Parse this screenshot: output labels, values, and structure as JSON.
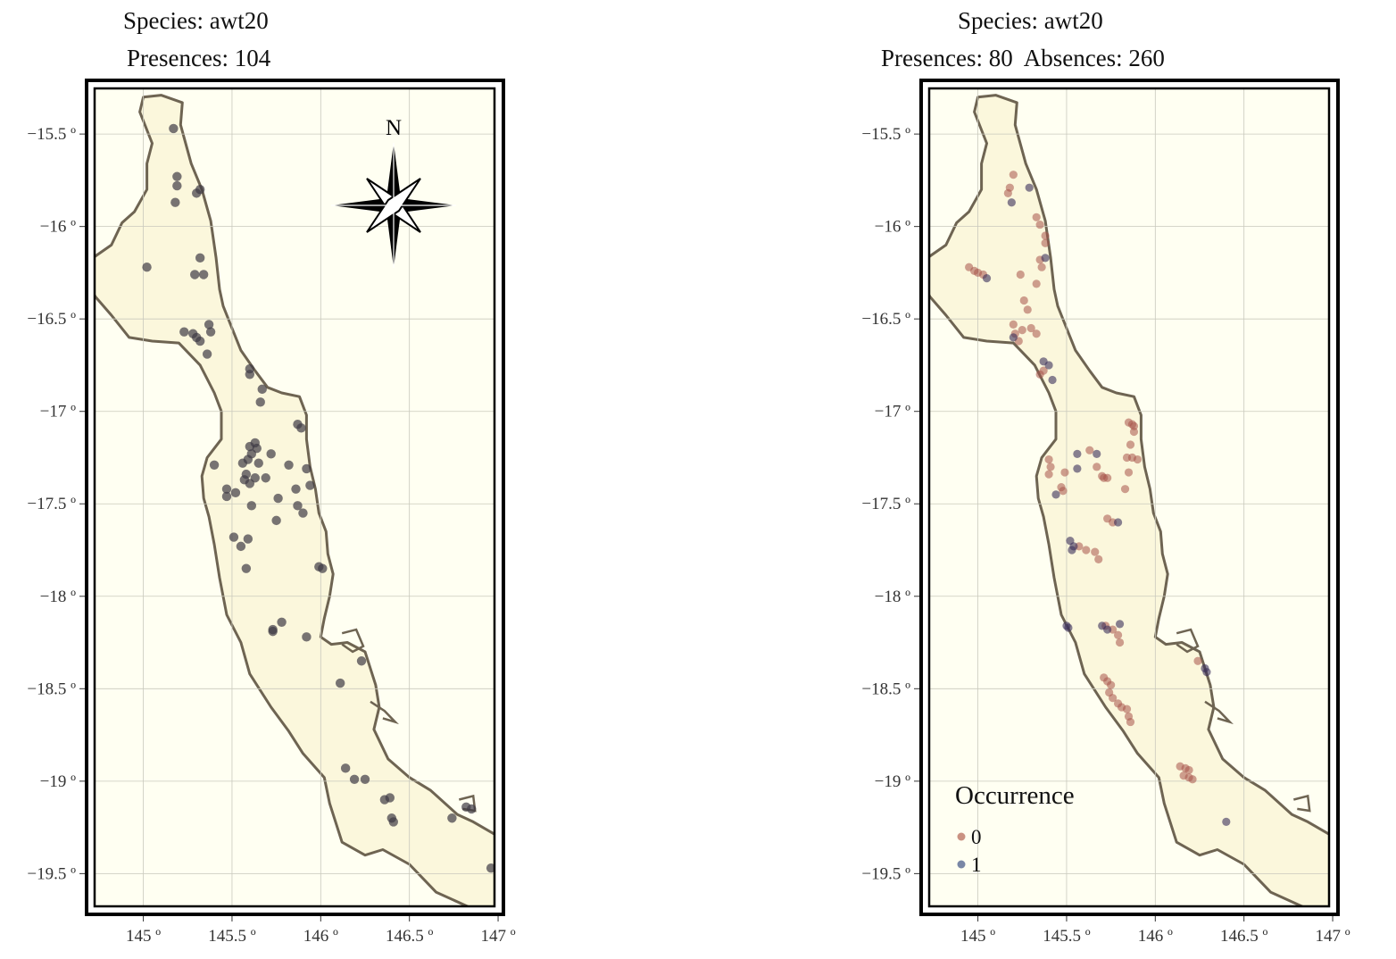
{
  "panels": [
    {
      "title_line1": "Species: awt20",
      "title_line2": "Presences: 104",
      "has_north_arrow": true,
      "north_label": "N",
      "point_style": "presence"
    },
    {
      "title_line1": "Species: awt20",
      "title_line2": "Presences: 80  Absences: 260",
      "has_north_arrow": false,
      "point_style": "occurrence",
      "legend": {
        "title": "Occurrence",
        "items": [
          {
            "label": "0",
            "color": "#b86d5c"
          },
          {
            "label": "1",
            "color": "#4c5f8c"
          }
        ]
      }
    }
  ],
  "axis": {
    "x_ticks": [
      "145 º",
      "145.5 º",
      "146 º",
      "146.5 º",
      "147 º"
    ],
    "y_ticks": [
      "−15.5 º",
      "−16 º",
      "−16.5 º",
      "−17 º",
      "−17.5 º",
      "−18 º",
      "−18.5 º",
      "−19 º",
      "−19.5 º"
    ],
    "x_values": [
      145,
      145.5,
      146,
      146.5,
      147
    ],
    "y_values": [
      -15.5,
      -16,
      -16.5,
      -17,
      -17.5,
      -18,
      -18.5,
      -19,
      -19.5
    ],
    "xlim": [
      144.67,
      147.04
    ],
    "ylim": [
      -19.73,
      -15.2
    ]
  },
  "colors": {
    "land": "#fbf7dc",
    "panel_bg": "#fffff2",
    "coast": "#6e6452",
    "grid": "#c9c9bd",
    "presence_point": "#3e3a45",
    "absence_point": "#a8544a",
    "presence_point_dark": "#3a2e5a"
  },
  "coastline": [
    [
      145.0,
      -15.3
    ],
    [
      145.1,
      -15.29
    ],
    [
      145.22,
      -15.33
    ],
    [
      145.21,
      -15.45
    ],
    [
      145.27,
      -15.66
    ],
    [
      145.33,
      -15.8
    ],
    [
      145.38,
      -15.97
    ],
    [
      145.41,
      -16.17
    ],
    [
      145.43,
      -16.34
    ],
    [
      145.45,
      -16.43
    ],
    [
      145.5,
      -16.55
    ],
    [
      145.55,
      -16.67
    ],
    [
      145.63,
      -16.78
    ],
    [
      145.7,
      -16.87
    ],
    [
      145.78,
      -16.9
    ],
    [
      145.88,
      -16.92
    ],
    [
      145.92,
      -17.02
    ],
    [
      145.92,
      -17.15
    ],
    [
      145.94,
      -17.3
    ],
    [
      145.97,
      -17.42
    ],
    [
      145.99,
      -17.55
    ],
    [
      146.03,
      -17.65
    ],
    [
      146.04,
      -17.77
    ],
    [
      146.07,
      -17.88
    ],
    [
      146.05,
      -18.0
    ],
    [
      146.02,
      -18.12
    ],
    [
      146.0,
      -18.22
    ],
    [
      146.06,
      -18.26
    ],
    [
      146.15,
      -18.25
    ],
    [
      146.25,
      -18.3
    ],
    [
      146.31,
      -18.48
    ],
    [
      146.33,
      -18.6
    ],
    [
      146.3,
      -18.72
    ],
    [
      146.38,
      -18.88
    ],
    [
      146.5,
      -18.98
    ],
    [
      146.62,
      -19.05
    ],
    [
      146.77,
      -19.18
    ],
    [
      146.86,
      -19.22
    ],
    [
      147.04,
      -19.32
    ],
    [
      147.04,
      -19.73
    ],
    [
      146.88,
      -19.7
    ],
    [
      146.65,
      -19.6
    ],
    [
      146.5,
      -19.45
    ],
    [
      146.35,
      -19.37
    ],
    [
      146.25,
      -19.4
    ],
    [
      146.12,
      -19.33
    ],
    [
      146.05,
      -19.12
    ],
    [
      146.02,
      -18.98
    ],
    [
      145.9,
      -18.85
    ],
    [
      145.82,
      -18.73
    ],
    [
      145.72,
      -18.6
    ],
    [
      145.6,
      -18.42
    ],
    [
      145.55,
      -18.25
    ],
    [
      145.47,
      -18.1
    ],
    [
      145.43,
      -17.9
    ],
    [
      145.4,
      -17.72
    ],
    [
      145.37,
      -17.57
    ],
    [
      145.34,
      -17.47
    ],
    [
      145.33,
      -17.35
    ],
    [
      145.36,
      -17.25
    ],
    [
      145.44,
      -17.15
    ],
    [
      145.44,
      -17.0
    ],
    [
      145.4,
      -16.9
    ],
    [
      145.32,
      -16.75
    ],
    [
      145.2,
      -16.63
    ],
    [
      145.05,
      -16.62
    ],
    [
      144.92,
      -16.6
    ],
    [
      144.82,
      -16.48
    ],
    [
      144.73,
      -16.38
    ],
    [
      144.67,
      -16.28
    ],
    [
      144.7,
      -16.18
    ],
    [
      144.82,
      -16.1
    ],
    [
      144.88,
      -15.98
    ],
    [
      144.95,
      -15.92
    ],
    [
      145.02,
      -15.8
    ],
    [
      145.02,
      -15.66
    ],
    [
      145.05,
      -15.55
    ],
    [
      144.98,
      -15.38
    ]
  ],
  "islands": [
    [
      [
        146.12,
        -18.2
      ],
      [
        146.2,
        -18.18
      ],
      [
        146.24,
        -18.27
      ],
      [
        146.18,
        -18.3
      ],
      [
        146.12,
        -18.26
      ]
    ],
    [
      [
        146.28,
        -18.57
      ],
      [
        146.36,
        -18.62
      ],
      [
        146.42,
        -18.68
      ],
      [
        146.35,
        -18.66
      ]
    ],
    [
      [
        146.78,
        -19.1
      ],
      [
        146.86,
        -19.08
      ],
      [
        146.87,
        -19.16
      ],
      [
        146.8,
        -19.15
      ]
    ]
  ],
  "map_points_left": [
    [
      145.17,
      -15.47
    ],
    [
      145.19,
      -15.73
    ],
    [
      145.19,
      -15.78
    ],
    [
      145.18,
      -15.87
    ],
    [
      145.3,
      -15.82
    ],
    [
      145.32,
      -15.8
    ],
    [
      145.32,
      -16.17
    ],
    [
      145.29,
      -16.26
    ],
    [
      145.34,
      -16.26
    ],
    [
      145.02,
      -16.22
    ],
    [
      145.23,
      -16.57
    ],
    [
      145.28,
      -16.58
    ],
    [
      145.3,
      -16.6
    ],
    [
      145.32,
      -16.62
    ],
    [
      145.37,
      -16.53
    ],
    [
      145.38,
      -16.57
    ],
    [
      145.36,
      -16.69
    ],
    [
      145.6,
      -16.8
    ],
    [
      145.6,
      -16.77
    ],
    [
      145.67,
      -16.88
    ],
    [
      145.66,
      -16.95
    ],
    [
      145.87,
      -17.07
    ],
    [
      145.89,
      -17.09
    ],
    [
      145.4,
      -17.29
    ],
    [
      145.47,
      -17.42
    ],
    [
      145.47,
      -17.46
    ],
    [
      145.52,
      -17.44
    ],
    [
      145.56,
      -17.28
    ],
    [
      145.58,
      -17.34
    ],
    [
      145.59,
      -17.26
    ],
    [
      145.61,
      -17.23
    ],
    [
      145.6,
      -17.19
    ],
    [
      145.63,
      -17.17
    ],
    [
      145.64,
      -17.2
    ],
    [
      145.65,
      -17.28
    ],
    [
      145.69,
      -17.36
    ],
    [
      145.72,
      -17.23
    ],
    [
      145.76,
      -17.47
    ],
    [
      145.82,
      -17.29
    ],
    [
      145.86,
      -17.42
    ],
    [
      145.87,
      -17.51
    ],
    [
      145.92,
      -17.31
    ],
    [
      145.94,
      -17.4
    ],
    [
      145.9,
      -17.55
    ],
    [
      145.6,
      -17.39
    ],
    [
      145.61,
      -17.51
    ],
    [
      145.57,
      -17.37
    ],
    [
      145.63,
      -17.36
    ],
    [
      145.75,
      -17.59
    ],
    [
      145.51,
      -17.68
    ],
    [
      145.55,
      -17.73
    ],
    [
      145.59,
      -17.69
    ],
    [
      145.58,
      -17.85
    ],
    [
      145.73,
      -18.18
    ],
    [
      145.73,
      -18.19
    ],
    [
      145.78,
      -18.14
    ],
    [
      145.92,
      -18.22
    ],
    [
      145.99,
      -17.84
    ],
    [
      146.01,
      -17.85
    ],
    [
      146.11,
      -18.47
    ],
    [
      146.23,
      -18.35
    ],
    [
      146.14,
      -18.93
    ],
    [
      146.19,
      -18.99
    ],
    [
      146.25,
      -18.99
    ],
    [
      146.36,
      -19.1
    ],
    [
      146.39,
      -19.09
    ],
    [
      146.4,
      -19.2
    ],
    [
      146.41,
      -19.22
    ],
    [
      146.74,
      -19.2
    ],
    [
      146.82,
      -19.14
    ],
    [
      146.85,
      -19.15
    ],
    [
      146.96,
      -19.47
    ]
  ],
  "map_points_right_absence": [
    [
      145.2,
      -15.72
    ],
    [
      145.18,
      -15.79
    ],
    [
      145.17,
      -15.82
    ],
    [
      145.33,
      -15.95
    ],
    [
      145.35,
      -15.99
    ],
    [
      145.38,
      -16.05
    ],
    [
      145.38,
      -16.09
    ],
    [
      145.35,
      -16.18
    ],
    [
      145.36,
      -16.22
    ],
    [
      145.33,
      -16.31
    ],
    [
      145.24,
      -16.26
    ],
    [
      145.26,
      -16.4
    ],
    [
      145.28,
      -16.45
    ],
    [
      144.95,
      -16.22
    ],
    [
      144.98,
      -16.24
    ],
    [
      145.0,
      -16.25
    ],
    [
      145.03,
      -16.26
    ],
    [
      145.2,
      -16.53
    ],
    [
      145.21,
      -16.58
    ],
    [
      145.23,
      -16.62
    ],
    [
      145.25,
      -16.56
    ],
    [
      145.3,
      -16.55
    ],
    [
      145.33,
      -16.58
    ],
    [
      145.37,
      -16.78
    ],
    [
      145.35,
      -16.8
    ],
    [
      145.4,
      -17.26
    ],
    [
      145.41,
      -17.3
    ],
    [
      145.4,
      -17.34
    ],
    [
      145.49,
      -17.33
    ],
    [
      145.47,
      -17.41
    ],
    [
      145.48,
      -17.43
    ],
    [
      145.63,
      -17.21
    ],
    [
      145.67,
      -17.3
    ],
    [
      145.7,
      -17.35
    ],
    [
      145.71,
      -17.36
    ],
    [
      145.73,
      -17.36
    ],
    [
      145.85,
      -17.06
    ],
    [
      145.87,
      -17.07
    ],
    [
      145.88,
      -17.08
    ],
    [
      145.88,
      -17.11
    ],
    [
      145.86,
      -17.18
    ],
    [
      145.84,
      -17.25
    ],
    [
      145.87,
      -17.25
    ],
    [
      145.9,
      -17.26
    ],
    [
      145.85,
      -17.33
    ],
    [
      145.83,
      -17.42
    ],
    [
      145.73,
      -17.58
    ],
    [
      145.76,
      -17.6
    ],
    [
      145.57,
      -17.73
    ],
    [
      145.61,
      -17.75
    ],
    [
      145.66,
      -17.76
    ],
    [
      145.68,
      -17.8
    ],
    [
      145.72,
      -18.16
    ],
    [
      145.76,
      -18.18
    ],
    [
      145.79,
      -18.21
    ],
    [
      145.8,
      -18.25
    ],
    [
      145.71,
      -18.44
    ],
    [
      145.73,
      -18.46
    ],
    [
      145.75,
      -18.48
    ],
    [
      145.74,
      -18.52
    ],
    [
      145.76,
      -18.55
    ],
    [
      145.79,
      -18.58
    ],
    [
      145.81,
      -18.6
    ],
    [
      145.84,
      -18.61
    ],
    [
      145.85,
      -18.65
    ],
    [
      145.86,
      -18.68
    ],
    [
      146.14,
      -18.92
    ],
    [
      146.17,
      -18.93
    ],
    [
      146.19,
      -18.94
    ],
    [
      146.16,
      -18.97
    ],
    [
      146.19,
      -18.98
    ],
    [
      146.21,
      -18.99
    ],
    [
      146.24,
      -18.35
    ]
  ],
  "map_points_right_presence": [
    [
      145.19,
      -15.87
    ],
    [
      145.29,
      -15.79
    ],
    [
      145.38,
      -16.17
    ],
    [
      145.05,
      -16.28
    ],
    [
      145.2,
      -16.6
    ],
    [
      145.37,
      -16.73
    ],
    [
      145.4,
      -16.75
    ],
    [
      145.42,
      -16.83
    ],
    [
      145.56,
      -17.23
    ],
    [
      145.56,
      -17.31
    ],
    [
      145.44,
      -17.45
    ],
    [
      145.67,
      -17.23
    ],
    [
      145.79,
      -17.6
    ],
    [
      145.52,
      -17.7
    ],
    [
      145.53,
      -17.75
    ],
    [
      145.54,
      -17.73
    ],
    [
      145.5,
      -18.16
    ],
    [
      145.51,
      -18.17
    ],
    [
      145.7,
      -18.16
    ],
    [
      145.73,
      -18.18
    ],
    [
      145.8,
      -18.15
    ],
    [
      146.28,
      -18.39
    ],
    [
      146.29,
      -18.41
    ],
    [
      146.4,
      -19.22
    ]
  ]
}
